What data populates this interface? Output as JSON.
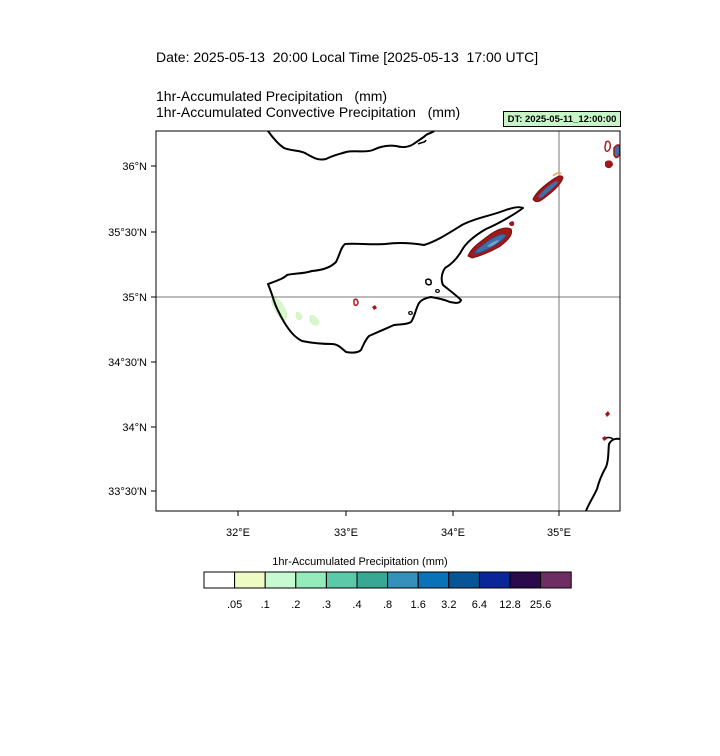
{
  "header": {
    "date_line": "Date: 2025-05-13  20:00 Local Time [2025-05-13  17:00 UTC]",
    "line1": "1hr-Accumulated Precipitation   (mm)",
    "line2": "1hr-Accumulated Convective Precipitation   (mm)",
    "dt_badge": "DT: 2025-05-11_12:00:00"
  },
  "map": {
    "region": "Cyprus and eastern Mediterranean",
    "lon_labels": [
      "32°E",
      "33°E",
      "34°E",
      "35°E"
    ],
    "lat_labels": [
      "36°N",
      "35°30'N",
      "35°N",
      "34°30'N",
      "34°N",
      "33°30'N"
    ],
    "reference_lines": {
      "lon": "35°E",
      "lat": "35°N"
    }
  },
  "colorbar": {
    "title": "1hr-Accumulated Precipitation  (mm)",
    "labels": [
      ".05",
      ".1",
      ".2",
      ".3",
      ".4",
      ".8",
      "1.6",
      "3.2",
      "6.4",
      "12.8",
      "25.6"
    ],
    "colors": [
      "#ffffff",
      "#eefbc2",
      "#c7fad1",
      "#94ecbb",
      "#5ccaa8",
      "#38a895",
      "#3591b9",
      "#0a72b7",
      "#075597",
      "#0b2698",
      "#2a0a4a",
      "#6e2e63"
    ]
  },
  "colors": {
    "convective_contour": "#a01818",
    "coastline": "#000000"
  }
}
